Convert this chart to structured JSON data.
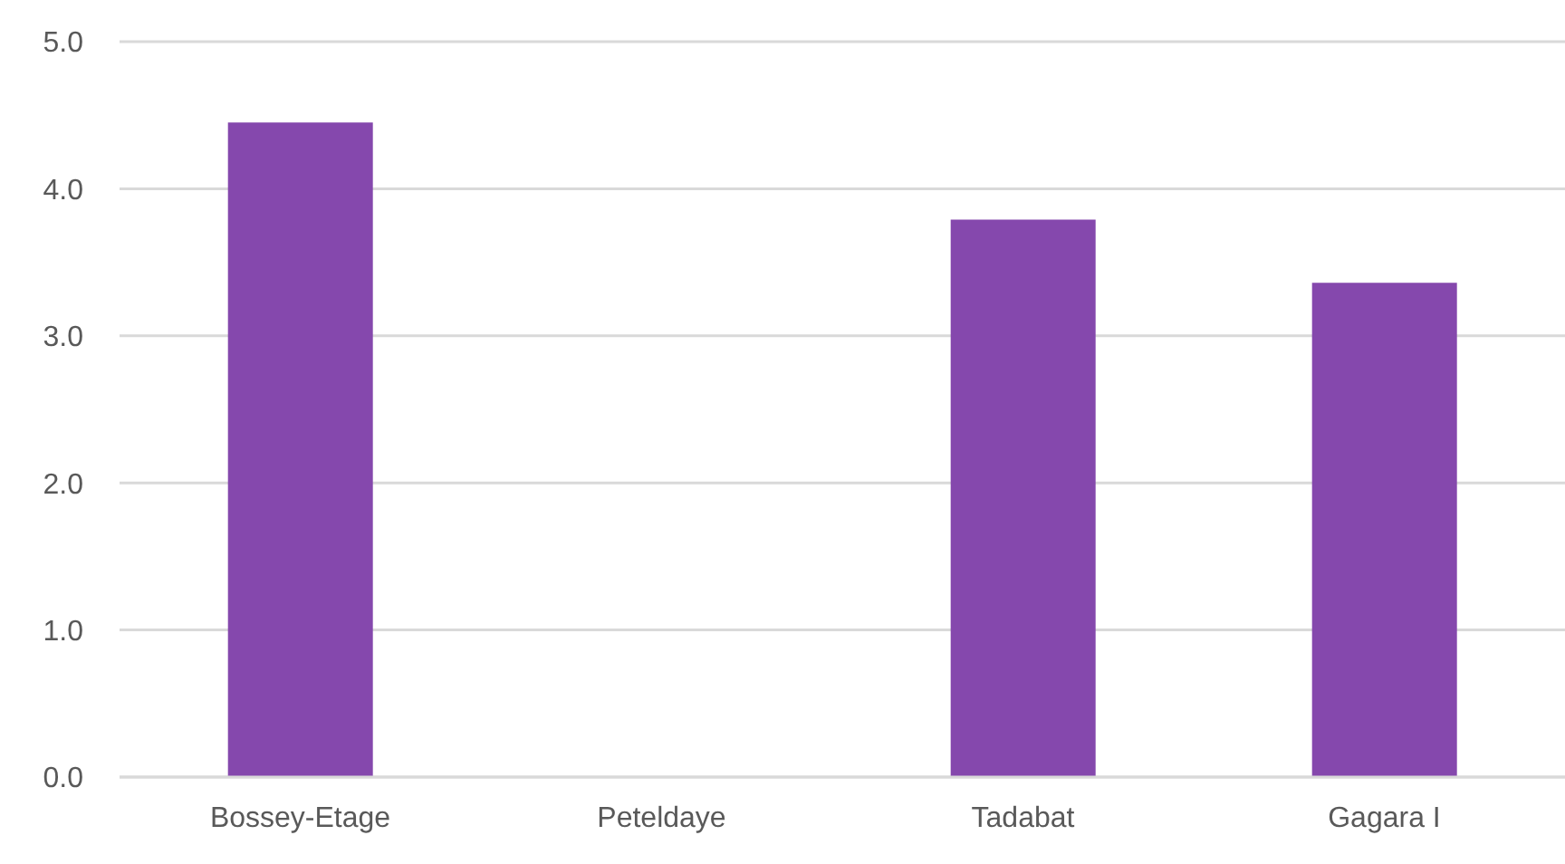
{
  "chart_data": {
    "type": "bar",
    "categories": [
      "Bossey-Etage",
      "Peteldaye",
      "Tadabat",
      "Gagara I"
    ],
    "values": [
      4.45,
      null,
      3.79,
      3.36
    ],
    "color": "#8548ad",
    "ylim": [
      0,
      5
    ],
    "yticks": [
      {
        "value": 0,
        "label": "0.0"
      },
      {
        "value": 1,
        "label": "1.0"
      },
      {
        "value": 2,
        "label": "2.0"
      },
      {
        "value": 3,
        "label": "3.0"
      },
      {
        "value": 4,
        "label": "4.0"
      },
      {
        "value": 5,
        "label": "5.0"
      }
    ],
    "grid": "y"
  }
}
